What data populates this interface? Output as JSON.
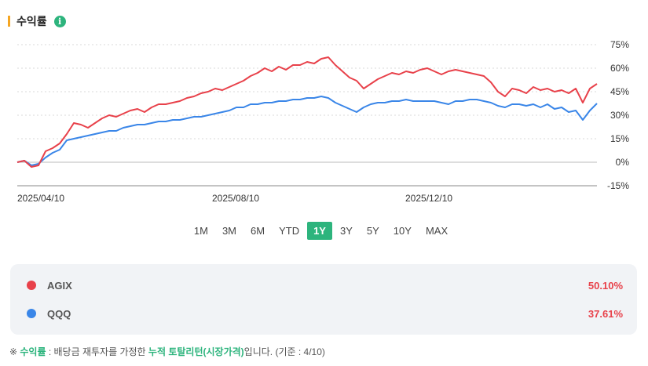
{
  "header": {
    "title": "수익률",
    "info_icon": "i"
  },
  "chart_data": {
    "type": "line",
    "x_ticks": [
      "2025/04/10",
      "2025/08/10",
      "2025/12/10"
    ],
    "y_ticks": [
      "75%",
      "60%",
      "45%",
      "30%",
      "15%",
      "0%",
      "-15%"
    ],
    "ylim": [
      -15,
      75
    ],
    "grid": true,
    "series": [
      {
        "name": "AGIX",
        "color": "#e8414a",
        "values": [
          0,
          1,
          -3,
          -2,
          7,
          9,
          12,
          18,
          25,
          24,
          22,
          25,
          28,
          30,
          29,
          31,
          33,
          34,
          32,
          35,
          37,
          37,
          38,
          39,
          41,
          42,
          44,
          45,
          47,
          46,
          48,
          50,
          52,
          55,
          57,
          60,
          58,
          61,
          59,
          62,
          62,
          64,
          63,
          66,
          67,
          62,
          58,
          54,
          52,
          47,
          50,
          53,
          55,
          57,
          56,
          58,
          57,
          59,
          60,
          58,
          56,
          58,
          59,
          58,
          57,
          56,
          55,
          51,
          45,
          42,
          47,
          46,
          44,
          48,
          46,
          47,
          45,
          46,
          44,
          47,
          38,
          47,
          50
        ]
      },
      {
        "name": "QQQ",
        "color": "#3a86e8",
        "values": [
          0,
          1,
          -2,
          -1,
          3,
          6,
          8,
          14,
          15,
          16,
          17,
          18,
          19,
          20,
          20,
          22,
          23,
          24,
          24,
          25,
          26,
          26,
          27,
          27,
          28,
          29,
          29,
          30,
          31,
          32,
          33,
          35,
          35,
          37,
          37,
          38,
          38,
          39,
          39,
          40,
          40,
          41,
          41,
          42,
          41,
          38,
          36,
          34,
          32,
          35,
          37,
          38,
          38,
          39,
          39,
          40,
          39,
          39,
          39,
          39,
          38,
          37,
          39,
          39,
          40,
          40,
          39,
          38,
          36,
          35,
          37,
          37,
          36,
          37,
          35,
          37,
          34,
          35,
          32,
          33,
          27,
          33,
          37.5
        ]
      }
    ]
  },
  "ranges": [
    "1M",
    "3M",
    "6M",
    "YTD",
    "1Y",
    "3Y",
    "5Y",
    "10Y",
    "MAX"
  ],
  "active_range": "1Y",
  "legend": [
    {
      "symbol": "AGIX",
      "color": "#e8414a",
      "return": "50.10%"
    },
    {
      "symbol": "QQQ",
      "color": "#3a86e8",
      "return": "37.61%"
    }
  ],
  "footnote": {
    "prefix": "※ ",
    "term": "수익률",
    "middle": " : 배당금 재투자를 가정한 ",
    "highlight": "누적 토탈리턴(시장가격)",
    "suffix": "입니다. (기준 : 4/10)"
  }
}
